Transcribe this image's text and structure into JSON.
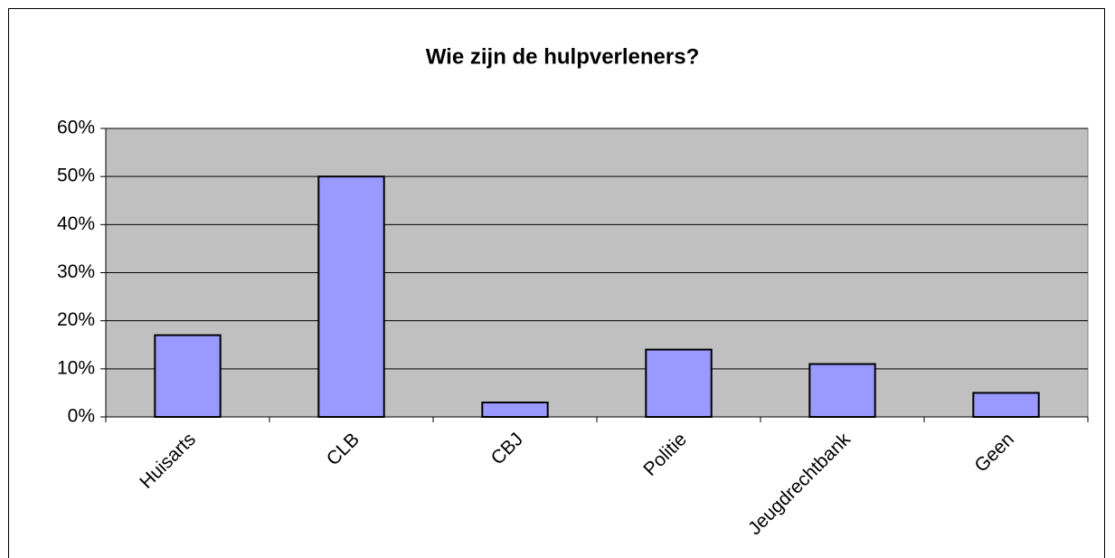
{
  "chart_data": {
    "type": "bar",
    "title": "Wie zijn de hulpverleners?",
    "categories": [
      "Huisarts",
      "CLB",
      "CBJ",
      "Politie",
      "Jeugdrechtbank",
      "Geen"
    ],
    "values": [
      17,
      50,
      3,
      14,
      11,
      5
    ],
    "color": "#9999ff",
    "ylim": [
      0,
      60
    ],
    "yticks": [
      {
        "value": 0,
        "label": "0%"
      },
      {
        "value": 10,
        "label": "10%"
      },
      {
        "value": 20,
        "label": "20%"
      },
      {
        "value": 30,
        "label": "30%"
      },
      {
        "value": 40,
        "label": "40%"
      },
      {
        "value": 50,
        "label": "50%"
      },
      {
        "value": 60,
        "label": "60%"
      }
    ],
    "grid": true
  }
}
